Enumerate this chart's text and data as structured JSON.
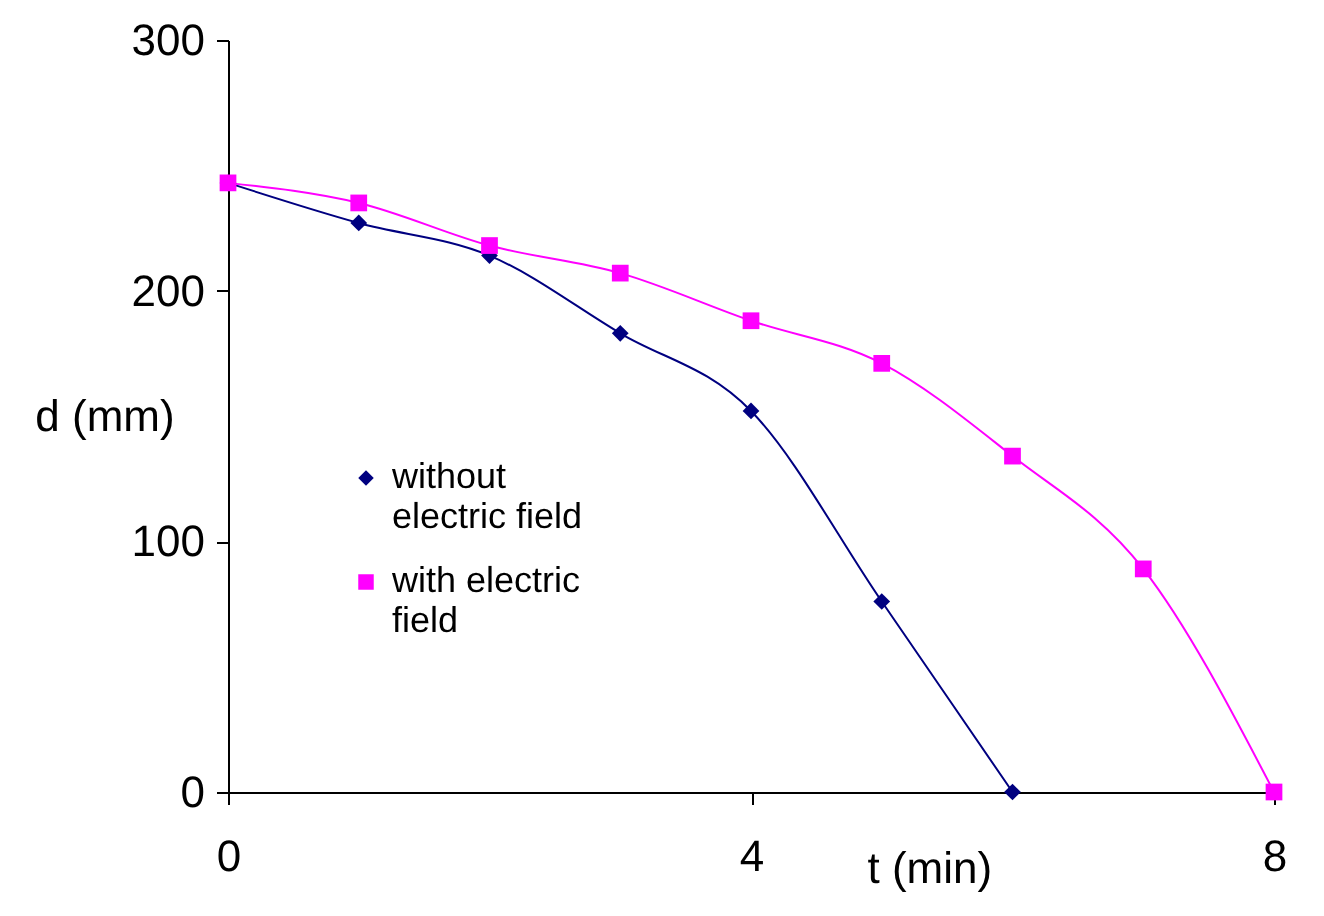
{
  "chart_data": {
    "type": "line",
    "xlabel": "t (min)",
    "ylabel": "d (mm)",
    "xlim": [
      0,
      8
    ],
    "xticks": [
      0,
      4,
      8
    ],
    "ylim": [
      0,
      300
    ],
    "yticks": [
      0,
      100,
      200,
      300
    ],
    "grid": false,
    "legend": "left",
    "series": [
      {
        "name": "without electric field",
        "color": "#000080",
        "marker": "diamond",
        "x": [
          0,
          1,
          2,
          3,
          4,
          5,
          6
        ],
        "values": [
          243,
          227,
          214,
          183,
          152,
          76,
          0
        ]
      },
      {
        "name": "with electric field",
        "color": "#ff00ff",
        "marker": "square",
        "x": [
          0,
          1,
          2,
          3,
          4,
          5,
          6,
          7,
          8
        ],
        "values": [
          243,
          235,
          218,
          207,
          188,
          171,
          134,
          89,
          0
        ]
      }
    ]
  }
}
